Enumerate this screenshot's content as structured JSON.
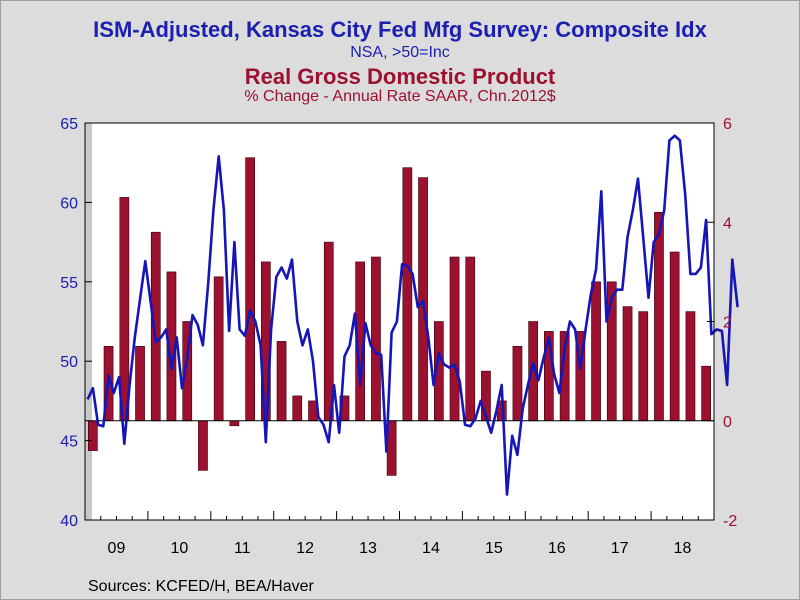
{
  "header": {
    "title_left": "ISM-Adjusted, Kansas City Fed Mfg Survey: Composite Idx",
    "subtitle_left": "NSA, >50=Inc",
    "title_right": "Real Gross Domestic Product",
    "subtitle_right": "% Change - Annual Rate     SAAR, Chn.2012$"
  },
  "footer": {
    "source": "Sources:  KCFED/H, BEA/Haver"
  },
  "colors": {
    "line": "#1515b8",
    "bar": "#9c1030",
    "bar_edge": "#3a0008",
    "left_axis": "#1c20b0",
    "right_axis": "#9c1030",
    "plot_bg": "#ffffff",
    "page_bg": "#dcdcdc"
  },
  "chart_data": {
    "type": "bar+line",
    "x_tick_labels": [
      "09",
      "10",
      "11",
      "12",
      "13",
      "14",
      "15",
      "16",
      "17",
      "18"
    ],
    "x_range_quarters": [
      2009.0,
      2019.0
    ],
    "left_axis": {
      "series": "ISM-Adjusted, Kansas City Fed Mfg Survey: Composite Idx",
      "range": [
        40,
        65
      ],
      "ticks": [
        40,
        45,
        50,
        55,
        60,
        65
      ]
    },
    "right_axis": {
      "series": "Real Gross Domestic Product",
      "range": [
        -2,
        6
      ],
      "ticks": [
        -2,
        0,
        2,
        4,
        6
      ]
    },
    "gdp_quarterly": {
      "start": "2009Q1",
      "values": [
        -0.6,
        1.5,
        4.5,
        1.5,
        3.8,
        3.0,
        2.0,
        -1.0,
        2.9,
        -0.1,
        5.3,
        3.2,
        1.6,
        0.5,
        0.4,
        3.6,
        0.5,
        3.2,
        3.3,
        -1.1,
        5.1,
        4.9,
        2.0,
        3.3,
        3.3,
        1.0,
        0.4,
        1.5,
        2.0,
        1.8,
        1.8,
        1.8,
        2.8,
        2.8,
        2.3,
        2.2,
        4.2,
        3.4,
        2.2,
        1.1
      ]
    },
    "kc_fed_monthly": {
      "start": "2009-01",
      "values": [
        47.6,
        48.3,
        46.0,
        45.9,
        49.1,
        48.0,
        49.0,
        44.8,
        48.5,
        51.5,
        53.9,
        56.3,
        53.8,
        51.2,
        51.5,
        52.0,
        49.5,
        51.5,
        48.3,
        50.2,
        52.9,
        52.3,
        51.0,
        54.9,
        59.5,
        62.9,
        59.5,
        51.9,
        57.5,
        52.0,
        51.6,
        53.2,
        52.5,
        51.0,
        44.9,
        52.0,
        55.3,
        55.9,
        55.2,
        56.4,
        52.5,
        51.0,
        52.0,
        50.0,
        46.5,
        46.0,
        44.9,
        48.5,
        45.5,
        50.3,
        51.0,
        53.0,
        48.5,
        52.4,
        51.0,
        50.5,
        50.4,
        44.3,
        51.8,
        52.5,
        56.1,
        56.0,
        55.5,
        53.4,
        53.8,
        51.5,
        48.5,
        50.5,
        49.8,
        49.6,
        49.8,
        48.7,
        46.0,
        45.9,
        46.4,
        47.5,
        46.5,
        45.5,
        46.9,
        48.5,
        41.6,
        45.3,
        44.1,
        47.0,
        48.5,
        49.9,
        48.8,
        50.2,
        51.5,
        49.2,
        48.0,
        50.8,
        52.5,
        52.0,
        49.5,
        52.0,
        54.2,
        55.8,
        60.7,
        52.5,
        54.0,
        54.5,
        54.5,
        57.8,
        59.5,
        61.5,
        57.8,
        54.0,
        57.5,
        58.0,
        59.5,
        63.9,
        64.2,
        63.9,
        60.5,
        55.5,
        55.5,
        55.9,
        58.9,
        51.7,
        52.0,
        51.9,
        48.5,
        56.4,
        53.4
      ]
    }
  }
}
